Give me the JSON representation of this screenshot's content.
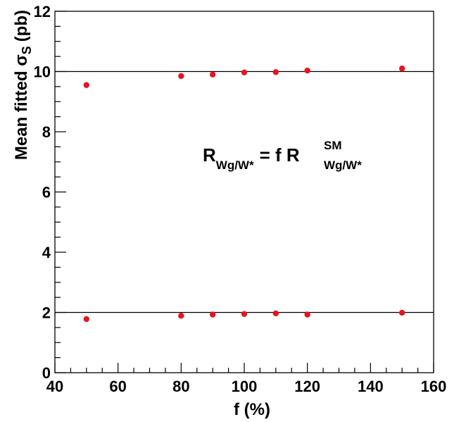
{
  "chart_data": {
    "type": "scatter",
    "title": "",
    "xlabel": "f (%)",
    "ylabel_main": "Mean fitted σ",
    "ylabel_sub": "S",
    "ylabel_unit": "(pb)",
    "xlim": [
      40,
      160
    ],
    "ylim": [
      0,
      12
    ],
    "x_ticks": [
      40,
      60,
      80,
      100,
      120,
      140,
      160
    ],
    "y_ticks": [
      0,
      2,
      4,
      6,
      8,
      10,
      12
    ],
    "x_tick_labels": [
      "40",
      "60",
      "80",
      "100",
      "120",
      "140",
      "160"
    ],
    "y_tick_labels": [
      "0",
      "2",
      "4",
      "6",
      "8",
      "10",
      "12"
    ],
    "grid": false,
    "reference_lines": [
      10,
      2
    ],
    "series": [
      {
        "color": "#e8141e",
        "x": [
          50,
          80,
          90,
          100,
          110,
          120,
          150
        ],
        "y": [
          9.55,
          9.85,
          9.9,
          9.97,
          9.98,
          10.03,
          10.1
        ]
      },
      {
        "color": "#e8141e",
        "x": [
          50,
          80,
          90,
          100,
          110,
          120,
          150
        ],
        "y": [
          1.78,
          1.89,
          1.93,
          1.95,
          1.97,
          1.93,
          1.99
        ]
      }
    ],
    "annotation": {
      "text_R": "R",
      "sub_left": "Wg/W*",
      "equals": "= f R",
      "sup_right": "SM",
      "sub_right": "Wg/W*"
    }
  }
}
